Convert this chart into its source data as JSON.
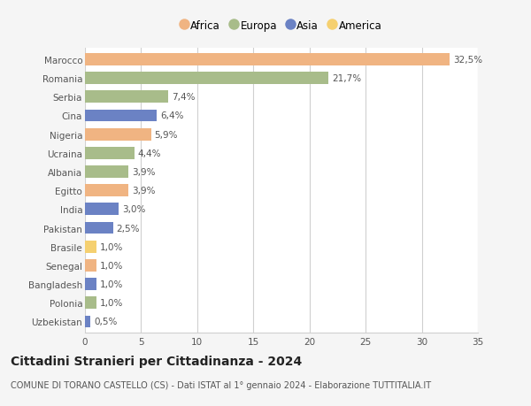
{
  "categories": [
    "Marocco",
    "Romania",
    "Serbia",
    "Cina",
    "Nigeria",
    "Ucraina",
    "Albania",
    "Egitto",
    "India",
    "Pakistan",
    "Brasile",
    "Senegal",
    "Bangladesh",
    "Polonia",
    "Uzbekistan"
  ],
  "values": [
    32.5,
    21.7,
    7.4,
    6.4,
    5.9,
    4.4,
    3.9,
    3.9,
    3.0,
    2.5,
    1.0,
    1.0,
    1.0,
    1.0,
    0.5
  ],
  "labels": [
    "32,5%",
    "21,7%",
    "7,4%",
    "6,4%",
    "5,9%",
    "4,4%",
    "3,9%",
    "3,9%",
    "3,0%",
    "2,5%",
    "1,0%",
    "1,0%",
    "1,0%",
    "1,0%",
    "0,5%"
  ],
  "colors": [
    "#f0b482",
    "#a8bc8a",
    "#a8bc8a",
    "#6b82c4",
    "#f0b482",
    "#a8bc8a",
    "#a8bc8a",
    "#f0b482",
    "#6b82c4",
    "#6b82c4",
    "#f5d070",
    "#f0b482",
    "#6b82c4",
    "#a8bc8a",
    "#6b82c4"
  ],
  "legend_labels": [
    "Africa",
    "Europa",
    "Asia",
    "America"
  ],
  "legend_colors": [
    "#f0b482",
    "#a8bc8a",
    "#6b82c4",
    "#f5d070"
  ],
  "title": "Cittadini Stranieri per Cittadinanza - 2024",
  "subtitle": "COMUNE DI TORANO CASTELLO (CS) - Dati ISTAT al 1° gennaio 2024 - Elaborazione TUTTITALIA.IT",
  "xlim": [
    0,
    35
  ],
  "xticks": [
    0,
    5,
    10,
    15,
    20,
    25,
    30,
    35
  ],
  "background_color": "#f5f5f5",
  "plot_background": "#ffffff",
  "grid_color": "#d0d0d0",
  "bar_height": 0.65,
  "label_fontsize": 7.5,
  "tick_fontsize": 7.5,
  "title_fontsize": 10,
  "subtitle_fontsize": 7
}
